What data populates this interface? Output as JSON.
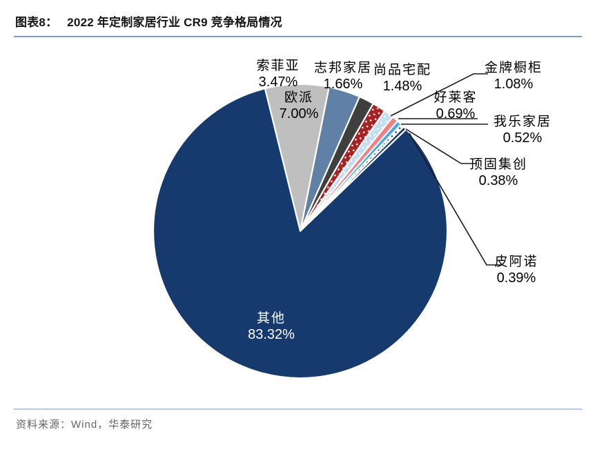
{
  "header": {
    "label": "图表8：",
    "title": "2022 年定制家居行业 CR9 竞争格局情况"
  },
  "footer": {
    "source": "资料来源：Wind，华泰研究"
  },
  "colors": {
    "title_rule": "#7E9CC0",
    "footer_rule": "#B9C7DA",
    "navy": "#16396E",
    "leader_line": "#1A1A1A",
    "source_text": "#636363"
  },
  "chart_data": {
    "type": "pie",
    "title": "2022 年定制家居行业 CR9 竞争格局情况",
    "categories": [
      "欧派",
      "索菲亚",
      "志邦家居",
      "尚品宅配",
      "金牌橱柜",
      "好莱客",
      "我乐家居",
      "顶固集创",
      "皮阿诺",
      "其他"
    ],
    "values": [
      7.0,
      3.47,
      1.66,
      1.48,
      1.08,
      0.69,
      0.52,
      0.38,
      0.39,
      83.32
    ],
    "pct_labels": [
      "7.00%",
      "3.47%",
      "1.66%",
      "1.48%",
      "1.08%",
      "0.69%",
      "0.52%",
      "0.38%",
      "0.39%",
      "83.32%"
    ],
    "slice_colors": [
      "#BFBFBF",
      "#6080A6",
      "#3F3F3F",
      "#A52323",
      "#C4DDF0",
      "#F08184",
      "#4FA8DC",
      "#FFFFFF",
      "#16396E",
      "#16396E"
    ],
    "slice_patterns": [
      null,
      null,
      null,
      "white-dots-red",
      "white-dots-blue",
      null,
      null,
      "navy-dashes",
      null,
      null
    ],
    "start_angle_deg": -13.9,
    "direction": "clockwise",
    "legend_position": "none",
    "label_style": "outside-with-leader-lines, 欧派 and 其他 labeled inside"
  }
}
